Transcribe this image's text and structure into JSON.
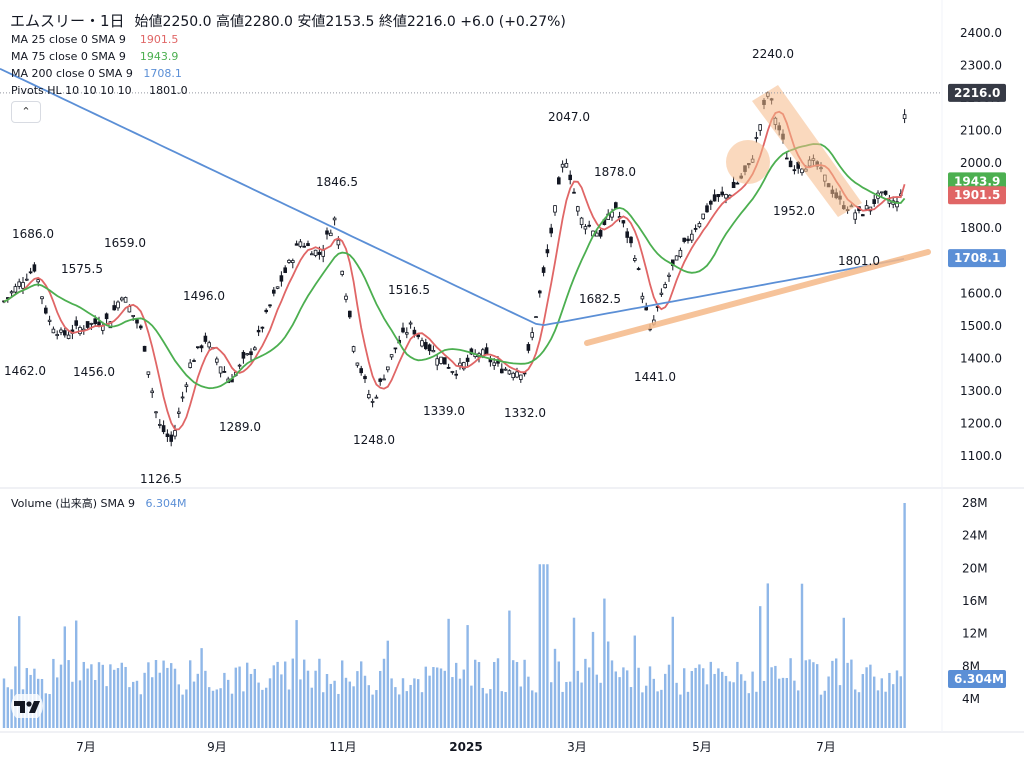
{
  "header": {
    "name": "エムスリー・1日",
    "ohlc": "始値2250.0  高値2280.0  安値2153.5  終値2216.0  +6.0 (+0.27%)"
  },
  "indicators": [
    {
      "label": "MA 25 close 0 SMA 9",
      "value": "1901.5",
      "color": "#e06666"
    },
    {
      "label": "MA 75 close 0 SMA 9",
      "value": "1943.9",
      "color": "#4caf50"
    },
    {
      "label": "MA 200 close 0 SMA 9",
      "value": "1708.1",
      "color": "#5b8fd6"
    },
    {
      "label": "Pivots HL 10 10 10 10",
      "value": "1801.0",
      "color": "#131722"
    }
  ],
  "volume_header": {
    "label": "Volume (出来高)  SMA 9",
    "value": "6.304M",
    "color": "#5b8fd6"
  },
  "collapse_button": "⌃",
  "logo_icon": "tradingview-logo-icon",
  "colors": {
    "up": "#ffffff",
    "down": "#131722",
    "ma25": "#e06666",
    "ma75": "#4caf50",
    "ma200": "#5b8fd6",
    "volume": "#8fb7e8",
    "pattern": "#f5b989"
  },
  "chart_data": {
    "type": "candlestick",
    "price_axis": {
      "min": 1100,
      "max": 2400,
      "ticks": [
        "2400.0",
        "2300.0",
        "2200.0",
        "2100.0",
        "2000.0",
        "1900.0",
        "1800.0",
        "1700.0",
        "1600.0",
        "1500.0",
        "1400.0",
        "1300.0",
        "1200.0",
        "1100.0"
      ]
    },
    "volume_axis": {
      "ticks": [
        "28M",
        "24M",
        "20M",
        "16M",
        "12M",
        "8M",
        "4M"
      ]
    },
    "x_ticks": [
      "7月",
      "9月",
      "11月",
      "2025",
      "3月",
      "5月",
      "7月"
    ],
    "price_tags": [
      {
        "label": "2216.0",
        "value": 2216,
        "color": "#363a45"
      },
      {
        "label": "1943.9",
        "value": 1943.9,
        "color": "#4caf50"
      },
      {
        "label": "1901.5",
        "value": 1901.5,
        "color": "#e06666"
      },
      {
        "label": "1708.1",
        "value": 1708.1,
        "color": "#5b8fd6"
      }
    ],
    "volume_tag": {
      "label": "6.304M",
      "color": "#5b8fd6"
    },
    "pivots": [
      "1686.0",
      "1659.0",
      "1575.5",
      "1462.0",
      "1456.0",
      "1496.0",
      "1289.0",
      "1126.5",
      "1846.5",
      "1248.0",
      "1516.5",
      "1339.0",
      "1332.0",
      "2047.0",
      "1878.0",
      "1682.5",
      "1441.0",
      "2240.0",
      "1952.0",
      "1801.0"
    ],
    "ohlc_last": {
      "open": 2250.0,
      "high": 2280.0,
      "low": 2153.5,
      "close": 2216.0
    }
  }
}
